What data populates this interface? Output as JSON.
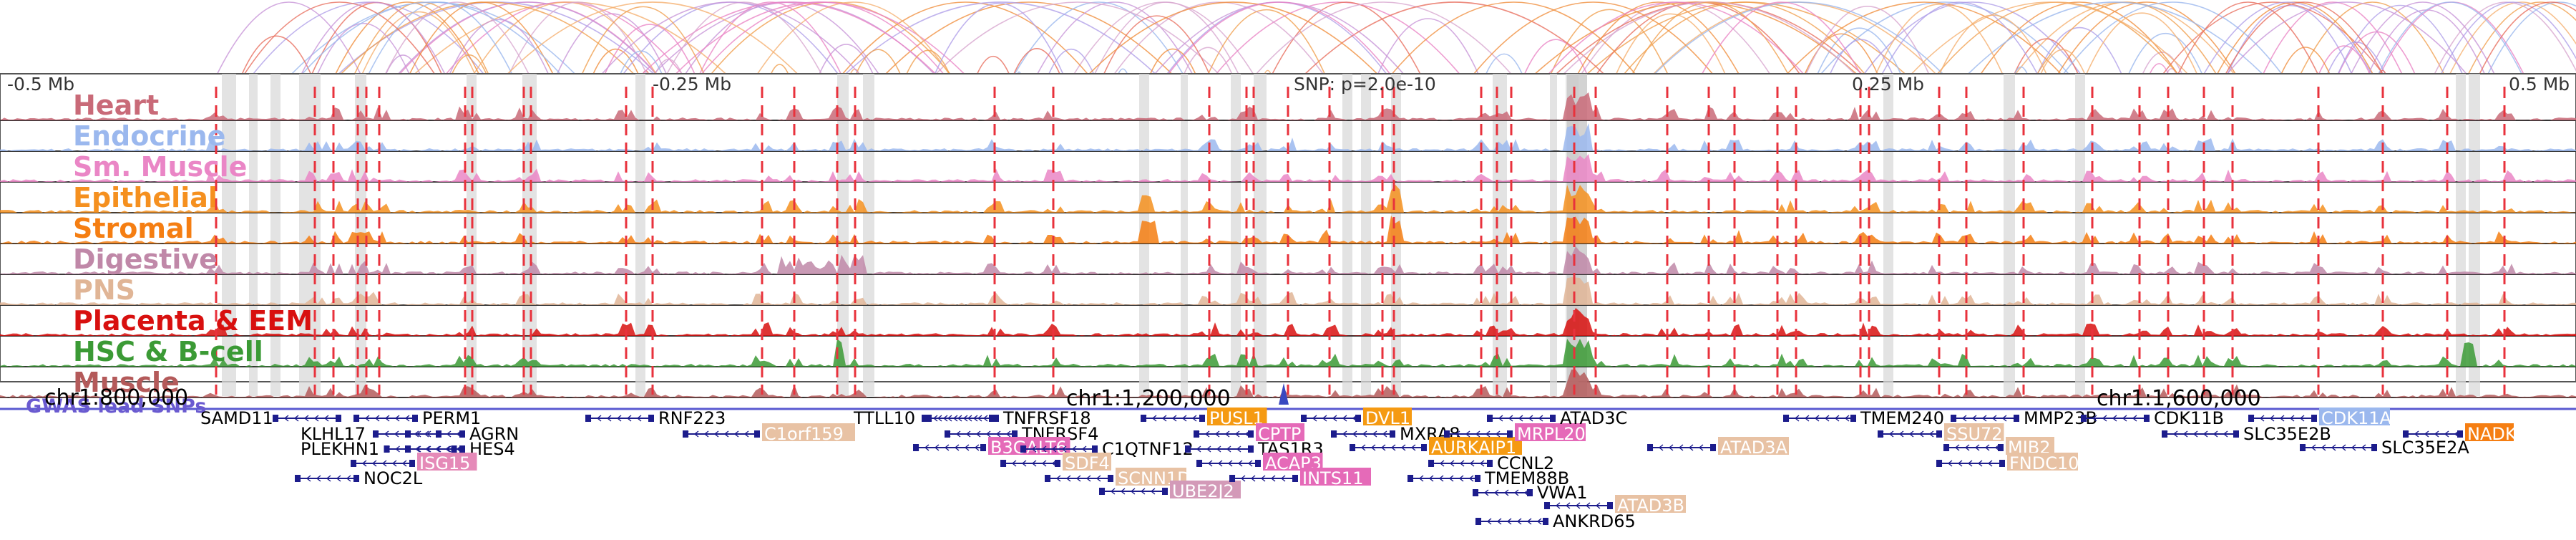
{
  "scale": {
    "ticks": [
      {
        "label": "-0.5 Mb",
        "pos": 0
      },
      {
        "label": "-0.25 Mb",
        "pos": 0.25
      },
      {
        "label": "0.25 Mb",
        "pos": 0.75
      },
      {
        "label": "0.5 Mb",
        "pos": 1
      }
    ],
    "snp_label": "SNP: p=2.0e-10"
  },
  "tracks": [
    {
      "name": "Heart",
      "color": "#c96a78"
    },
    {
      "name": "Endocrine",
      "color": "#9bb8ee"
    },
    {
      "name": "Sm. Muscle",
      "color": "#ea86c6"
    },
    {
      "name": "Epithelial",
      "color": "#f5901f"
    },
    {
      "name": "Stromal",
      "color": "#f57e12"
    },
    {
      "name": "Digestive",
      "color": "#c088a8"
    },
    {
      "name": "PNS",
      "color": "#e0b596"
    },
    {
      "name": "Placenta & EEM",
      "color": "#d8100f"
    },
    {
      "name": "HSC & B-cell",
      "color": "#3b9a35"
    },
    {
      "name": "Muscle",
      "color": "#b45a5a"
    }
  ],
  "gwas_label": "GWAS lead SNPs",
  "coordinates": [
    "chr1:800,000",
    "chr1:1,200,000",
    "chr1:1,600,000"
  ],
  "genes": [
    {
      "name": "SAMD11",
      "hl": null
    },
    {
      "name": "KLHL17",
      "hl": null
    },
    {
      "name": "PLEKHN1",
      "hl": null
    },
    {
      "name": "PERM1",
      "hl": null
    },
    {
      "name": "AGRN",
      "hl": null
    },
    {
      "name": "HES4",
      "hl": null
    },
    {
      "name": "ISG15",
      "hl": "#e58ab8"
    },
    {
      "name": "NOC2L",
      "hl": null
    },
    {
      "name": "RNF223",
      "hl": null
    },
    {
      "name": "C1orf159",
      "hl": "#e8c2a4"
    },
    {
      "name": "TTLL10",
      "hl": null
    },
    {
      "name": "TNFRSF18",
      "hl": null
    },
    {
      "name": "TNFRSF4",
      "hl": null
    },
    {
      "name": "B3GALT6",
      "hl": "#e56ab8"
    },
    {
      "name": "C1QTNF12",
      "hl": null
    },
    {
      "name": "SDF4",
      "hl": "#e8c2a4"
    },
    {
      "name": "SCNN1D",
      "hl": "#e8c2a4"
    },
    {
      "name": "UBE2J2",
      "hl": "#d39ab8"
    },
    {
      "name": "PUSL1",
      "hl": "#f59a12"
    },
    {
      "name": "CPTP",
      "hl": "#e56ab8"
    },
    {
      "name": "TAS1R3",
      "hl": null
    },
    {
      "name": "ACAP3",
      "hl": "#e56ab8"
    },
    {
      "name": "INTS11",
      "hl": "#e56ab8"
    },
    {
      "name": "DVL1",
      "hl": "#f59a12"
    },
    {
      "name": "MXRA8",
      "hl": null
    },
    {
      "name": "AURKAIP1",
      "hl": "#f59a12"
    },
    {
      "name": "CCNL2",
      "hl": null
    },
    {
      "name": "MRPL20",
      "hl": "#e56ab8"
    },
    {
      "name": "TMEM88B",
      "hl": null
    },
    {
      "name": "VWA1",
      "hl": null
    },
    {
      "name": "ATAD3C",
      "hl": null
    },
    {
      "name": "ATAD3B",
      "hl": "#e8c2a4"
    },
    {
      "name": "ANKRD65",
      "hl": null
    },
    {
      "name": "ATAD3A",
      "hl": "#e8c2a4"
    },
    {
      "name": "TMEM240",
      "hl": null
    },
    {
      "name": "SSU72",
      "hl": "#e8c2a4"
    },
    {
      "name": "MMP23B",
      "hl": null
    },
    {
      "name": "MIB2",
      "hl": "#e8c2a4"
    },
    {
      "name": "FNDC10",
      "hl": "#e8c2a4"
    },
    {
      "name": "CDK11B",
      "hl": null
    },
    {
      "name": "SLC35E2B",
      "hl": null
    },
    {
      "name": "CDK11A",
      "hl": "#9bb8ee"
    },
    {
      "name": "SLC35E2A",
      "hl": null
    },
    {
      "name": "NADK",
      "hl": "#f57e12"
    }
  ]
}
